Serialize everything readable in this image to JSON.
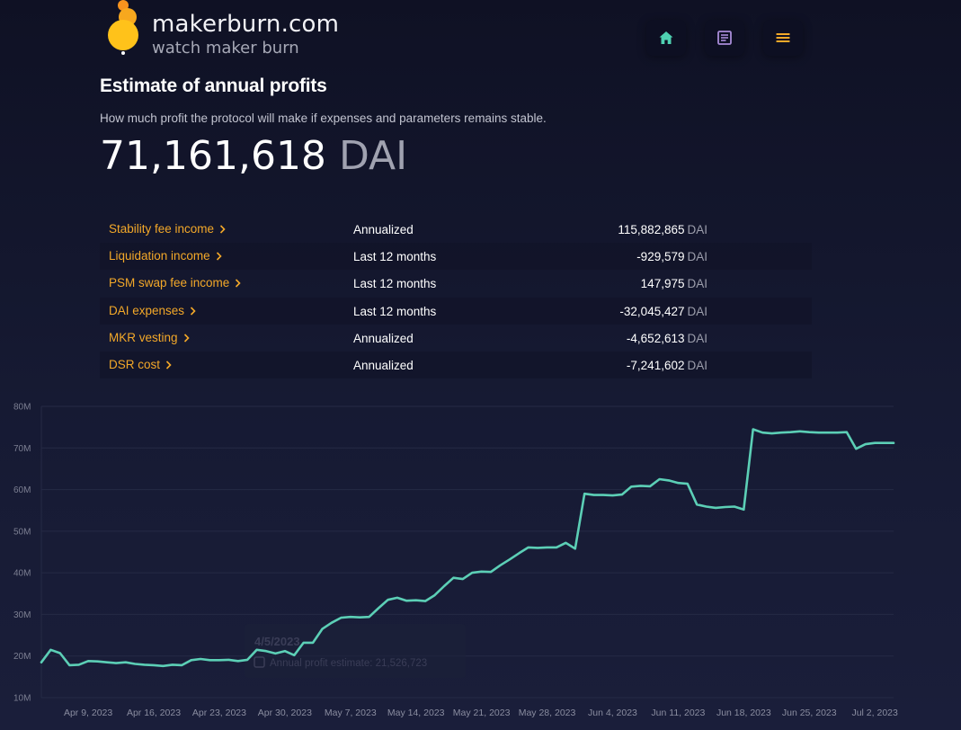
{
  "brand": {
    "name": "makerburn.com",
    "tagline": "watch maker burn"
  },
  "nav": {
    "home_icon": "home-icon",
    "docs_icon": "document-icon",
    "menu_icon": "menu-icon",
    "icon_colors": {
      "home": "#4fd1b2",
      "docs": "#a98cd9",
      "menu": "#f3a829"
    }
  },
  "summary": {
    "title": "Estimate of annual profits",
    "subtitle": "How much profit the protocol will make if expenses and parameters remains stable.",
    "total_value": "71,161,618",
    "total_unit": "DAI"
  },
  "breakdown": [
    {
      "label": "Stability fee income",
      "period": "Annualized",
      "value": "115,882,865",
      "unit": "DAI"
    },
    {
      "label": "Liquidation income",
      "period": "Last 12 months",
      "value": "-929,579",
      "unit": "DAI"
    },
    {
      "label": "PSM swap fee income",
      "period": "Last 12 months",
      "value": "147,975",
      "unit": "DAI"
    },
    {
      "label": "DAI expenses",
      "period": "Last 12 months",
      "value": "-32,045,427",
      "unit": "DAI"
    },
    {
      "label": "MKR vesting",
      "period": "Annualized",
      "value": "-4,652,613",
      "unit": "DAI"
    },
    {
      "label": "DSR cost",
      "period": "Annualized",
      "value": "-7,241,602",
      "unit": "DAI"
    }
  ],
  "colors": {
    "accent": "#f3a829",
    "line": "#5ccfb6",
    "grid": "#252a45",
    "background": "#14172d"
  },
  "tooltip": {
    "date": "4/5/2023",
    "text": "Annual profit estimate: 21,526,723"
  },
  "chart_data": {
    "type": "line",
    "ylim": [
      10,
      80
    ],
    "y_unit": "M",
    "y_ticks": [
      "80M",
      "70M",
      "60M",
      "50M",
      "40M",
      "30M",
      "20M",
      "10M"
    ],
    "x_ticks": [
      "Apr 9, 2023",
      "Apr 16, 2023",
      "Apr 23, 2023",
      "Apr 30, 2023",
      "May 7, 2023",
      "May 14, 2023",
      "May 21, 2023",
      "May 28, 2023",
      "Jun 4, 2023",
      "Jun 11, 2023",
      "Jun 18, 2023",
      "Jun 25, 2023",
      "Jul 2, 2023"
    ],
    "x_start": "2023-04-04",
    "x_end": "2023-07-04",
    "grid": true,
    "legend": "none",
    "series": [
      {
        "x": [
          "2023-04-04",
          "2023-04-05",
          "2023-04-06",
          "2023-04-07",
          "2023-04-08",
          "2023-04-09",
          "2023-04-10",
          "2023-04-11",
          "2023-04-12",
          "2023-04-13",
          "2023-04-14",
          "2023-04-15",
          "2023-04-16",
          "2023-04-17",
          "2023-04-18",
          "2023-04-19",
          "2023-04-20",
          "2023-04-21",
          "2023-04-22",
          "2023-04-23",
          "2023-04-24",
          "2023-04-25",
          "2023-04-26",
          "2023-04-27",
          "2023-04-28",
          "2023-04-29",
          "2023-04-30",
          "2023-05-01",
          "2023-05-02",
          "2023-05-03",
          "2023-05-04",
          "2023-05-05",
          "2023-05-06",
          "2023-05-07",
          "2023-05-08",
          "2023-05-09",
          "2023-05-10",
          "2023-05-11",
          "2023-05-12",
          "2023-05-13",
          "2023-05-14",
          "2023-05-15",
          "2023-05-16",
          "2023-05-17",
          "2023-05-18",
          "2023-05-19",
          "2023-05-20",
          "2023-05-21",
          "2023-05-22",
          "2023-05-23",
          "2023-05-24",
          "2023-05-25",
          "2023-05-26",
          "2023-05-27",
          "2023-05-28",
          "2023-05-29",
          "2023-05-30",
          "2023-05-31",
          "2023-06-01",
          "2023-06-02",
          "2023-06-03",
          "2023-06-04",
          "2023-06-05",
          "2023-06-06",
          "2023-06-07",
          "2023-06-08",
          "2023-06-09",
          "2023-06-10",
          "2023-06-11",
          "2023-06-12",
          "2023-06-13",
          "2023-06-14",
          "2023-06-15",
          "2023-06-16",
          "2023-06-17",
          "2023-06-18",
          "2023-06-19",
          "2023-06-20",
          "2023-06-21",
          "2023-06-22",
          "2023-06-23",
          "2023-06-24",
          "2023-06-25",
          "2023-06-26",
          "2023-06-27",
          "2023-06-28",
          "2023-06-29",
          "2023-06-30",
          "2023-07-01",
          "2023-07-02",
          "2023-07-03",
          "2023-07-04"
        ],
        "y": [
          18.5,
          21.5,
          20.7,
          17.8,
          17.9,
          18.8,
          18.7,
          18.5,
          18.3,
          18.5,
          18.1,
          17.9,
          17.8,
          17.6,
          17.9,
          17.8,
          19.0,
          19.3,
          19.0,
          19.0,
          19.1,
          18.8,
          19.1,
          21.5,
          21.2,
          20.6,
          21.2,
          20.2,
          23.2,
          23.2,
          26.5,
          28.0,
          29.2,
          29.4,
          29.3,
          29.4,
          31.5,
          33.5,
          34.0,
          33.3,
          33.4,
          33.2,
          34.6,
          36.8,
          38.8,
          38.5,
          40.0,
          40.3,
          40.2,
          41.8,
          43.2,
          44.7,
          46.1,
          46.0,
          46.1,
          46.1,
          47.2,
          45.8,
          59.0,
          58.7,
          58.7,
          58.6,
          58.8,
          60.7,
          60.9,
          60.8,
          62.5,
          62.2,
          61.6,
          61.4,
          56.4,
          55.9,
          55.6,
          55.8,
          55.9,
          55.2,
          74.5,
          73.7,
          73.5,
          73.7,
          73.8,
          74.0,
          73.8,
          73.7,
          73.7,
          73.7,
          73.8,
          69.8,
          70.9,
          71.2,
          71.2,
          71.2
        ]
      }
    ]
  }
}
